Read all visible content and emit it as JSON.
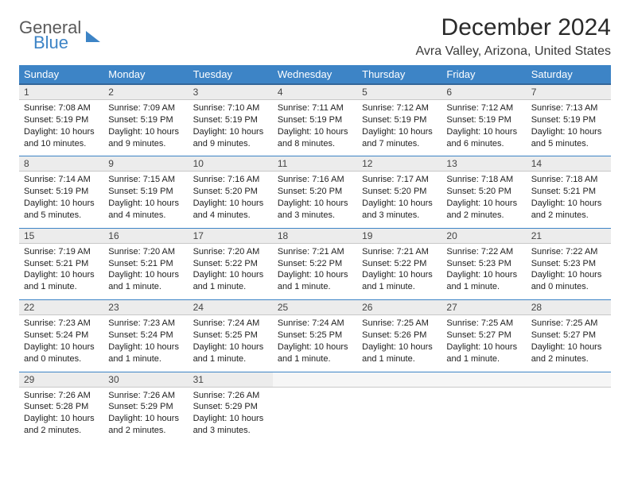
{
  "logo": {
    "general": "General",
    "blue": "Blue"
  },
  "title": "December 2024",
  "location": "Avra Valley, Arizona, United States",
  "colors": {
    "header_bg": "#3d84c6",
    "header_border": "#336699",
    "daynum_bg": "#ececec",
    "row_sep": "#3d84c6"
  },
  "weekdays": [
    "Sunday",
    "Monday",
    "Tuesday",
    "Wednesday",
    "Thursday",
    "Friday",
    "Saturday"
  ],
  "weeks": [
    [
      {
        "n": "1",
        "sr": "Sunrise: 7:08 AM",
        "ss": "Sunset: 5:19 PM",
        "dl": "Daylight: 10 hours and 10 minutes."
      },
      {
        "n": "2",
        "sr": "Sunrise: 7:09 AM",
        "ss": "Sunset: 5:19 PM",
        "dl": "Daylight: 10 hours and 9 minutes."
      },
      {
        "n": "3",
        "sr": "Sunrise: 7:10 AM",
        "ss": "Sunset: 5:19 PM",
        "dl": "Daylight: 10 hours and 9 minutes."
      },
      {
        "n": "4",
        "sr": "Sunrise: 7:11 AM",
        "ss": "Sunset: 5:19 PM",
        "dl": "Daylight: 10 hours and 8 minutes."
      },
      {
        "n": "5",
        "sr": "Sunrise: 7:12 AM",
        "ss": "Sunset: 5:19 PM",
        "dl": "Daylight: 10 hours and 7 minutes."
      },
      {
        "n": "6",
        "sr": "Sunrise: 7:12 AM",
        "ss": "Sunset: 5:19 PM",
        "dl": "Daylight: 10 hours and 6 minutes."
      },
      {
        "n": "7",
        "sr": "Sunrise: 7:13 AM",
        "ss": "Sunset: 5:19 PM",
        "dl": "Daylight: 10 hours and 5 minutes."
      }
    ],
    [
      {
        "n": "8",
        "sr": "Sunrise: 7:14 AM",
        "ss": "Sunset: 5:19 PM",
        "dl": "Daylight: 10 hours and 5 minutes."
      },
      {
        "n": "9",
        "sr": "Sunrise: 7:15 AM",
        "ss": "Sunset: 5:19 PM",
        "dl": "Daylight: 10 hours and 4 minutes."
      },
      {
        "n": "10",
        "sr": "Sunrise: 7:16 AM",
        "ss": "Sunset: 5:20 PM",
        "dl": "Daylight: 10 hours and 4 minutes."
      },
      {
        "n": "11",
        "sr": "Sunrise: 7:16 AM",
        "ss": "Sunset: 5:20 PM",
        "dl": "Daylight: 10 hours and 3 minutes."
      },
      {
        "n": "12",
        "sr": "Sunrise: 7:17 AM",
        "ss": "Sunset: 5:20 PM",
        "dl": "Daylight: 10 hours and 3 minutes."
      },
      {
        "n": "13",
        "sr": "Sunrise: 7:18 AM",
        "ss": "Sunset: 5:20 PM",
        "dl": "Daylight: 10 hours and 2 minutes."
      },
      {
        "n": "14",
        "sr": "Sunrise: 7:18 AM",
        "ss": "Sunset: 5:21 PM",
        "dl": "Daylight: 10 hours and 2 minutes."
      }
    ],
    [
      {
        "n": "15",
        "sr": "Sunrise: 7:19 AM",
        "ss": "Sunset: 5:21 PM",
        "dl": "Daylight: 10 hours and 1 minute."
      },
      {
        "n": "16",
        "sr": "Sunrise: 7:20 AM",
        "ss": "Sunset: 5:21 PM",
        "dl": "Daylight: 10 hours and 1 minute."
      },
      {
        "n": "17",
        "sr": "Sunrise: 7:20 AM",
        "ss": "Sunset: 5:22 PM",
        "dl": "Daylight: 10 hours and 1 minute."
      },
      {
        "n": "18",
        "sr": "Sunrise: 7:21 AM",
        "ss": "Sunset: 5:22 PM",
        "dl": "Daylight: 10 hours and 1 minute."
      },
      {
        "n": "19",
        "sr": "Sunrise: 7:21 AM",
        "ss": "Sunset: 5:22 PM",
        "dl": "Daylight: 10 hours and 1 minute."
      },
      {
        "n": "20",
        "sr": "Sunrise: 7:22 AM",
        "ss": "Sunset: 5:23 PM",
        "dl": "Daylight: 10 hours and 1 minute."
      },
      {
        "n": "21",
        "sr": "Sunrise: 7:22 AM",
        "ss": "Sunset: 5:23 PM",
        "dl": "Daylight: 10 hours and 0 minutes."
      }
    ],
    [
      {
        "n": "22",
        "sr": "Sunrise: 7:23 AM",
        "ss": "Sunset: 5:24 PM",
        "dl": "Daylight: 10 hours and 0 minutes."
      },
      {
        "n": "23",
        "sr": "Sunrise: 7:23 AM",
        "ss": "Sunset: 5:24 PM",
        "dl": "Daylight: 10 hours and 1 minute."
      },
      {
        "n": "24",
        "sr": "Sunrise: 7:24 AM",
        "ss": "Sunset: 5:25 PM",
        "dl": "Daylight: 10 hours and 1 minute."
      },
      {
        "n": "25",
        "sr": "Sunrise: 7:24 AM",
        "ss": "Sunset: 5:25 PM",
        "dl": "Daylight: 10 hours and 1 minute."
      },
      {
        "n": "26",
        "sr": "Sunrise: 7:25 AM",
        "ss": "Sunset: 5:26 PM",
        "dl": "Daylight: 10 hours and 1 minute."
      },
      {
        "n": "27",
        "sr": "Sunrise: 7:25 AM",
        "ss": "Sunset: 5:27 PM",
        "dl": "Daylight: 10 hours and 1 minute."
      },
      {
        "n": "28",
        "sr": "Sunrise: 7:25 AM",
        "ss": "Sunset: 5:27 PM",
        "dl": "Daylight: 10 hours and 2 minutes."
      }
    ],
    [
      {
        "n": "29",
        "sr": "Sunrise: 7:26 AM",
        "ss": "Sunset: 5:28 PM",
        "dl": "Daylight: 10 hours and 2 minutes."
      },
      {
        "n": "30",
        "sr": "Sunrise: 7:26 AM",
        "ss": "Sunset: 5:29 PM",
        "dl": "Daylight: 10 hours and 2 minutes."
      },
      {
        "n": "31",
        "sr": "Sunrise: 7:26 AM",
        "ss": "Sunset: 5:29 PM",
        "dl": "Daylight: 10 hours and 3 minutes."
      },
      null,
      null,
      null,
      null
    ]
  ]
}
